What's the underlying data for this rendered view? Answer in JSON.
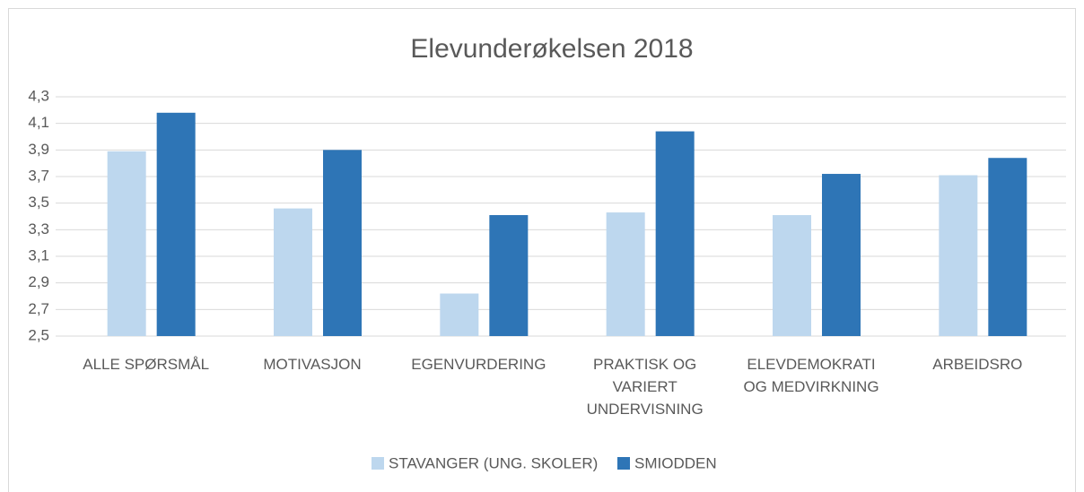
{
  "chart_data": {
    "type": "bar",
    "title": "Elevunderøkelsen 2018",
    "categories": [
      "ALLE SPØRSMÅL",
      "MOTIVASJON",
      "EGENVURDERING",
      "PRAKTISK OG VARIERT UNDERVISNING",
      "ELEVDEMOKRATI OG MEDVIRKNING",
      "ARBEIDSRO"
    ],
    "series": [
      {
        "name": "STAVANGER (UNG. SKOLER)",
        "color": "#bdd7ee",
        "values": [
          3.89,
          3.46,
          2.82,
          3.43,
          3.41,
          3.71
        ]
      },
      {
        "name": "SMIODDEN",
        "color": "#2e75b6",
        "values": [
          4.18,
          3.9,
          3.41,
          4.04,
          3.72,
          3.84
        ]
      }
    ],
    "ylim": [
      2.5,
      4.3
    ],
    "yticks": [
      {
        "value": 2.5,
        "label": "2,5"
      },
      {
        "value": 2.7,
        "label": "2,7"
      },
      {
        "value": 2.9,
        "label": "2,9"
      },
      {
        "value": 3.1,
        "label": "3,1"
      },
      {
        "value": 3.3,
        "label": "3,3"
      },
      {
        "value": 3.5,
        "label": "3,5"
      },
      {
        "value": 3.7,
        "label": "3,7"
      },
      {
        "value": 3.9,
        "label": "3,9"
      },
      {
        "value": 4.1,
        "label": "4,1"
      },
      {
        "value": 4.3,
        "label": "4,3"
      }
    ],
    "grid": true,
    "legend": "bottom"
  }
}
